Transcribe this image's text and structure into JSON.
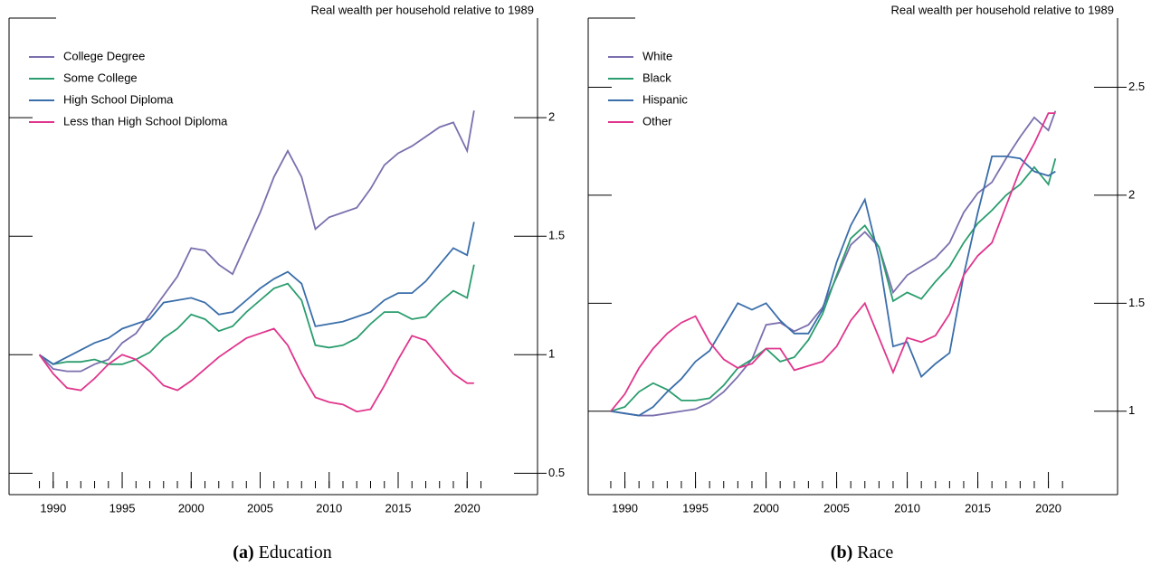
{
  "chart_data": [
    {
      "type": "line",
      "title": "Real wealth per household relative to 1989",
      "caption_label": "(a)",
      "caption": "Education",
      "x": [
        1989,
        1990,
        1991,
        1992,
        1993,
        1994,
        1995,
        1996,
        1997,
        1998,
        1999,
        2000,
        2001,
        2002,
        2003,
        2004,
        2005,
        2006,
        2007,
        2008,
        2009,
        2010,
        2011,
        2012,
        2013,
        2014,
        2015,
        2016,
        2017,
        2018,
        2019,
        2020,
        2020.5
      ],
      "series": [
        {
          "name": "College Degree",
          "color": "#7b6fae",
          "values": [
            1.0,
            0.94,
            0.93,
            0.93,
            0.96,
            0.98,
            1.05,
            1.09,
            1.17,
            1.25,
            1.33,
            1.45,
            1.44,
            1.38,
            1.34,
            1.47,
            1.6,
            1.75,
            1.86,
            1.75,
            1.53,
            1.58,
            1.6,
            1.62,
            1.7,
            1.8,
            1.85,
            1.88,
            1.92,
            1.96,
            1.98,
            1.86,
            2.03
          ]
        },
        {
          "name": "Some College",
          "color": "#2a9d6e",
          "values": [
            1.0,
            0.96,
            0.97,
            0.97,
            0.98,
            0.96,
            0.96,
            0.98,
            1.01,
            1.07,
            1.11,
            1.17,
            1.15,
            1.1,
            1.12,
            1.18,
            1.23,
            1.28,
            1.3,
            1.23,
            1.04,
            1.03,
            1.04,
            1.07,
            1.13,
            1.18,
            1.18,
            1.15,
            1.16,
            1.22,
            1.27,
            1.24,
            1.38
          ]
        },
        {
          "name": "High School Diploma",
          "color": "#3a6eaa",
          "values": [
            1.0,
            0.96,
            0.99,
            1.02,
            1.05,
            1.07,
            1.11,
            1.13,
            1.15,
            1.22,
            1.23,
            1.24,
            1.22,
            1.17,
            1.18,
            1.23,
            1.28,
            1.32,
            1.35,
            1.3,
            1.12,
            1.13,
            1.14,
            1.16,
            1.18,
            1.23,
            1.26,
            1.26,
            1.31,
            1.38,
            1.45,
            1.42,
            1.56
          ]
        },
        {
          "name": "Less than High School Diploma",
          "color": "#e0358c",
          "values": [
            1.0,
            0.92,
            0.86,
            0.85,
            0.9,
            0.96,
            1.0,
            0.98,
            0.93,
            0.87,
            0.85,
            0.89,
            0.94,
            0.99,
            1.03,
            1.07,
            1.09,
            1.11,
            1.04,
            0.92,
            0.82,
            0.8,
            0.79,
            0.76,
            0.77,
            0.87,
            0.98,
            1.08,
            1.06,
            0.99,
            0.92,
            0.88,
            0.88
          ]
        }
      ],
      "xlim": [
        1986.8,
        2025.1
      ],
      "xticks": [
        1990,
        1995,
        2000,
        2005,
        2010,
        2015,
        2020
      ],
      "xminorticks": [
        1989,
        1990,
        1991,
        1992,
        1993,
        1994,
        1995,
        1996,
        1997,
        1998,
        1999,
        2000,
        2001,
        2002,
        2003,
        2004,
        2005,
        2006,
        2007,
        2008,
        2009,
        2010,
        2011,
        2012,
        2013,
        2014,
        2015,
        2016,
        2017,
        2018,
        2019,
        2020,
        2021
      ],
      "ylim": [
        0.41,
        2.42
      ],
      "yticks": [
        0.5,
        1.0,
        1.5,
        2.0
      ]
    },
    {
      "type": "line",
      "title": "Real wealth per household relative to 1989",
      "caption_label": "(b)",
      "caption": "Race",
      "x": [
        1989,
        1990,
        1991,
        1992,
        1993,
        1994,
        1995,
        1996,
        1997,
        1998,
        1999,
        2000,
        2001,
        2002,
        2003,
        2004,
        2005,
        2006,
        2007,
        2008,
        2009,
        2010,
        2011,
        2012,
        2013,
        2014,
        2015,
        2016,
        2017,
        2018,
        2019,
        2020,
        2020.5
      ],
      "series": [
        {
          "name": "White",
          "color": "#7b6fae",
          "values": [
            1.0,
            0.99,
            0.98,
            0.98,
            0.99,
            1.0,
            1.01,
            1.04,
            1.09,
            1.16,
            1.24,
            1.4,
            1.41,
            1.37,
            1.4,
            1.48,
            1.62,
            1.77,
            1.83,
            1.76,
            1.55,
            1.63,
            1.67,
            1.71,
            1.78,
            1.92,
            2.01,
            2.06,
            2.17,
            2.27,
            2.36,
            2.3,
            2.39
          ]
        },
        {
          "name": "Black",
          "color": "#2a9d6e",
          "values": [
            1.0,
            1.02,
            1.09,
            1.13,
            1.1,
            1.05,
            1.05,
            1.06,
            1.12,
            1.2,
            1.24,
            1.29,
            1.23,
            1.25,
            1.33,
            1.45,
            1.63,
            1.8,
            1.86,
            1.76,
            1.51,
            1.55,
            1.52,
            1.6,
            1.67,
            1.78,
            1.87,
            1.93,
            2.0,
            2.05,
            2.13,
            2.05,
            2.17
          ]
        },
        {
          "name": "Hispanic",
          "color": "#3a6eaa",
          "values": [
            1.0,
            0.99,
            0.98,
            1.02,
            1.09,
            1.15,
            1.23,
            1.28,
            1.39,
            1.5,
            1.47,
            1.5,
            1.42,
            1.36,
            1.36,
            1.47,
            1.69,
            1.86,
            1.98,
            1.71,
            1.3,
            1.32,
            1.16,
            1.22,
            1.27,
            1.63,
            1.92,
            2.18,
            2.18,
            2.17,
            2.11,
            2.09,
            2.11
          ]
        },
        {
          "name": "Other",
          "color": "#e0358c",
          "values": [
            1.0,
            1.08,
            1.2,
            1.29,
            1.36,
            1.41,
            1.44,
            1.32,
            1.24,
            1.2,
            1.22,
            1.29,
            1.29,
            1.19,
            1.21,
            1.23,
            1.3,
            1.42,
            1.5,
            1.34,
            1.18,
            1.34,
            1.32,
            1.35,
            1.45,
            1.63,
            1.72,
            1.78,
            1.95,
            2.12,
            2.24,
            2.38,
            2.38
          ]
        }
      ],
      "xlim": [
        1987.4,
        2024.9
      ],
      "xticks": [
        1990,
        1995,
        2000,
        2005,
        2010,
        2015,
        2020
      ],
      "xminorticks": [
        1989,
        1990,
        1991,
        1992,
        1993,
        1994,
        1995,
        1996,
        1997,
        1998,
        1999,
        2000,
        2001,
        2002,
        2003,
        2004,
        2005,
        2006,
        2007,
        2008,
        2009,
        2010,
        2011,
        2012,
        2013,
        2014,
        2015,
        2016,
        2017,
        2018,
        2019,
        2020,
        2021
      ],
      "ylim": [
        0.614,
        2.82
      ],
      "yticks": [
        1.0,
        1.5,
        2.0,
        2.5
      ]
    }
  ]
}
